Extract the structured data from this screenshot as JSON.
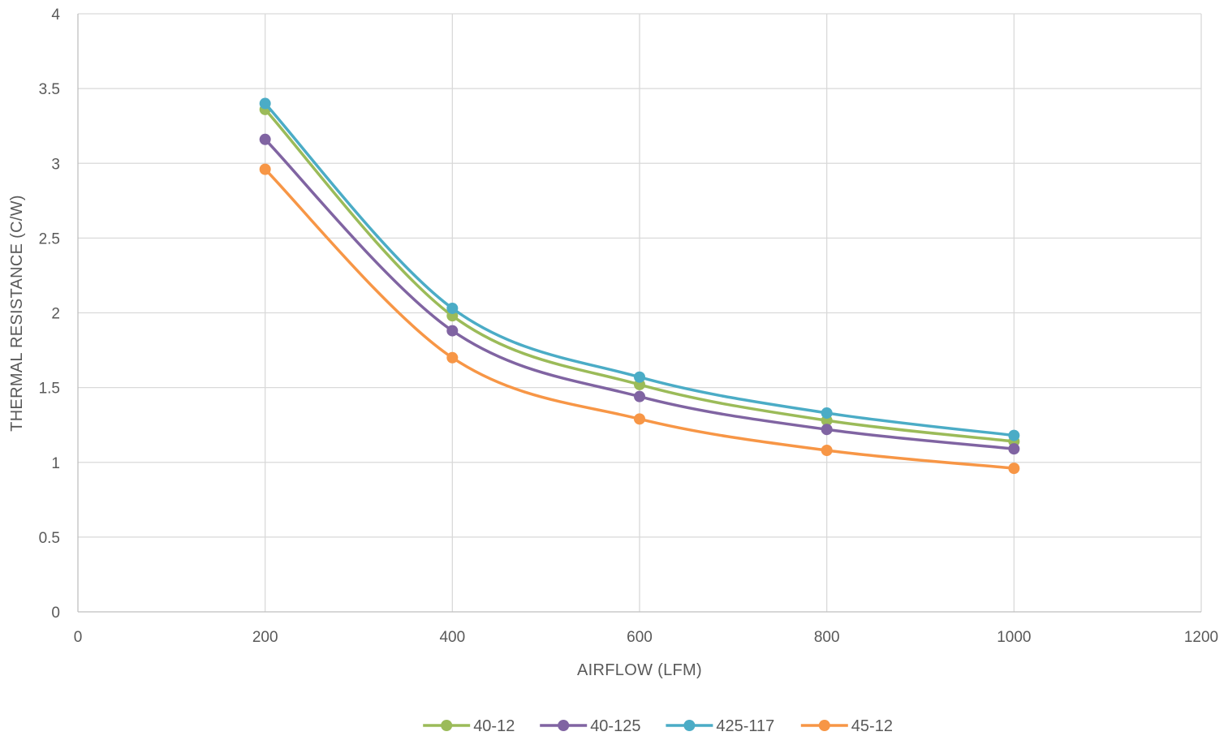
{
  "chart_data": {
    "type": "line",
    "xlabel": "AIRFLOW (LFM)",
    "ylabel": "THERMAL RESISTANCE (C/W)",
    "xlim": [
      0,
      1200
    ],
    "ylim": [
      0,
      4
    ],
    "x_ticks": [
      "0",
      "200",
      "400",
      "600",
      "800",
      "1000",
      "1200"
    ],
    "y_ticks": [
      "0",
      "0.5",
      "1",
      "1.5",
      "2",
      "2.5",
      "3",
      "3.5",
      "4"
    ],
    "x_tick_values": [
      0,
      200,
      400,
      600,
      800,
      1000,
      1200
    ],
    "y_tick_values": [
      0,
      0.5,
      1,
      1.5,
      2,
      2.5,
      3,
      3.5,
      4
    ],
    "grid": true,
    "legend_position": "bottom",
    "smooth": true,
    "x": [
      200,
      400,
      600,
      800,
      1000
    ],
    "series": [
      {
        "name": "40-12",
        "color": "#9BBB59",
        "values": [
          3.36,
          1.98,
          1.52,
          1.28,
          1.14
        ]
      },
      {
        "name": "40-125",
        "color": "#8064A2",
        "values": [
          3.16,
          1.88,
          1.44,
          1.22,
          1.09
        ]
      },
      {
        "name": "425-117",
        "color": "#4BACC6",
        "values": [
          3.4,
          2.03,
          1.57,
          1.33,
          1.18
        ]
      },
      {
        "name": "45-12",
        "color": "#F79646",
        "values": [
          2.96,
          1.7,
          1.29,
          1.08,
          0.96
        ]
      }
    ]
  }
}
